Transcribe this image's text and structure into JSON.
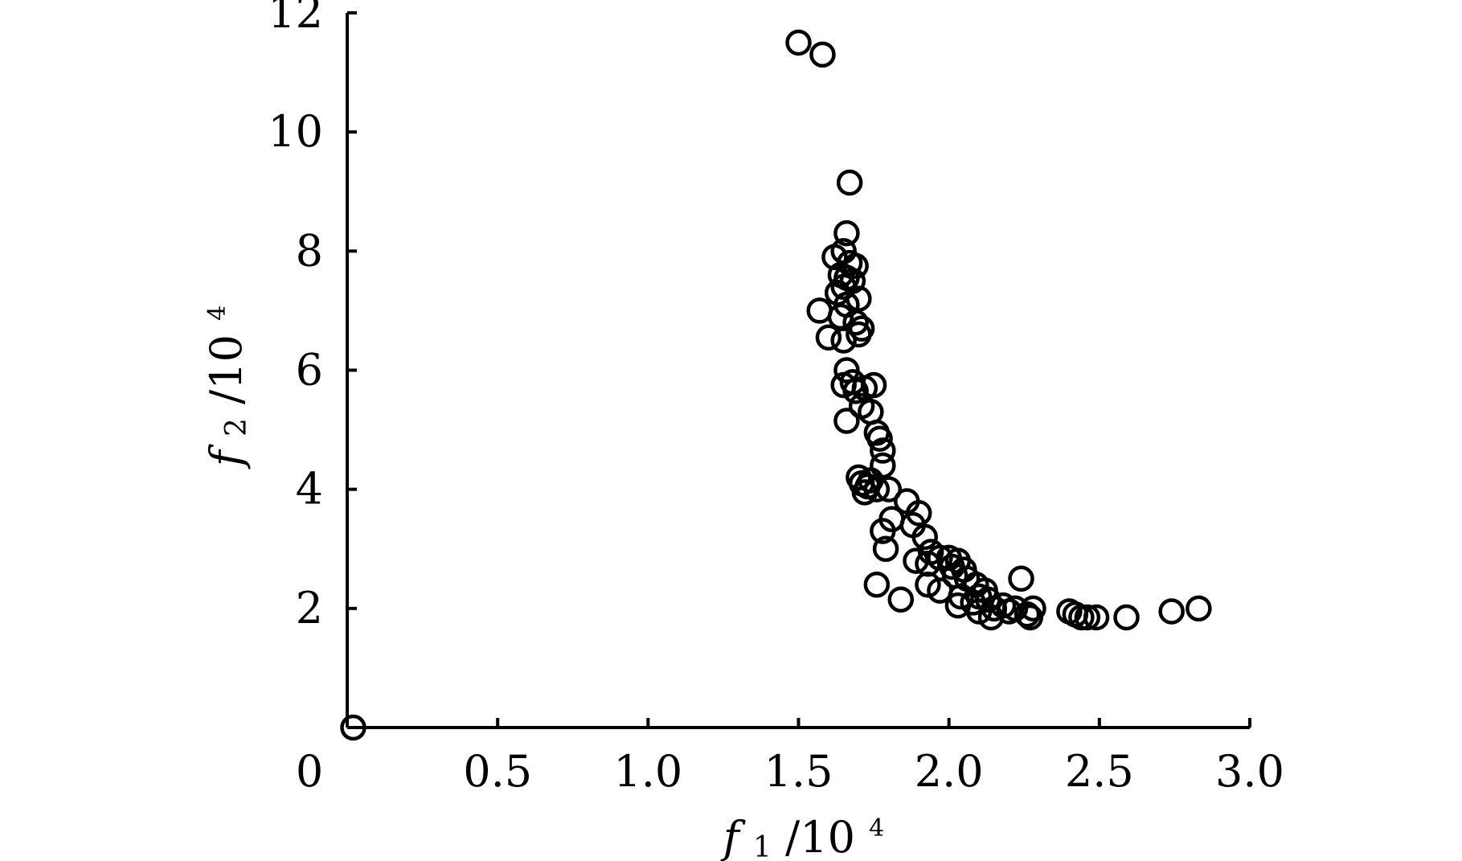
{
  "chart_data": {
    "type": "scatter",
    "title": "",
    "x_axis": {
      "label": {
        "var": "f",
        "sub": "1",
        "rest": "/10",
        "sup": "4"
      },
      "range": [
        0,
        3.0
      ],
      "ticks": [
        0,
        0.5,
        1.0,
        1.5,
        2.0,
        2.5,
        3.0
      ],
      "tick_labels": [
        "0",
        "0.5",
        "1.0",
        "1.5",
        "2.0",
        "2.5",
        "3.0"
      ]
    },
    "y_axis": {
      "label": {
        "var": "f",
        "sub": "2",
        "rest": "/10",
        "sup": "4"
      },
      "range": [
        0,
        12
      ],
      "ticks": [
        2,
        4,
        6,
        8,
        10,
        12
      ],
      "tick_labels": [
        "2",
        "4",
        "6",
        "8",
        "10",
        "12"
      ]
    },
    "grid": false,
    "legend": "none",
    "marker": "open-circle",
    "color": "#000000",
    "points": [
      [
        0.02,
        0.0
      ],
      [
        1.5,
        11.5
      ],
      [
        1.58,
        11.3
      ],
      [
        1.67,
        9.15
      ],
      [
        1.66,
        8.3
      ],
      [
        1.65,
        8.0
      ],
      [
        1.62,
        7.9
      ],
      [
        1.67,
        7.8
      ],
      [
        1.69,
        7.75
      ],
      [
        1.64,
        7.6
      ],
      [
        1.66,
        7.55
      ],
      [
        1.68,
        7.5
      ],
      [
        1.65,
        7.4
      ],
      [
        1.63,
        7.3
      ],
      [
        1.7,
        7.2
      ],
      [
        1.66,
        7.1
      ],
      [
        1.57,
        7.0
      ],
      [
        1.64,
        6.9
      ],
      [
        1.69,
        6.8
      ],
      [
        1.71,
        6.7
      ],
      [
        1.6,
        6.55
      ],
      [
        1.65,
        6.5
      ],
      [
        1.7,
        6.6
      ],
      [
        1.66,
        6.0
      ],
      [
        1.68,
        5.8
      ],
      [
        1.65,
        5.75
      ],
      [
        1.72,
        5.7
      ],
      [
        1.69,
        5.65
      ],
      [
        1.75,
        5.75
      ],
      [
        1.71,
        5.4
      ],
      [
        1.74,
        5.3
      ],
      [
        1.66,
        5.15
      ],
      [
        1.76,
        4.95
      ],
      [
        1.77,
        4.85
      ],
      [
        1.78,
        4.65
      ],
      [
        1.78,
        4.4
      ],
      [
        1.7,
        4.2
      ],
      [
        1.71,
        4.1
      ],
      [
        1.74,
        4.15
      ],
      [
        1.73,
        4.05
      ],
      [
        1.76,
        4.0
      ],
      [
        1.8,
        4.0
      ],
      [
        1.72,
        3.95
      ],
      [
        1.86,
        3.8
      ],
      [
        1.9,
        3.6
      ],
      [
        1.81,
        3.5
      ],
      [
        1.88,
        3.4
      ],
      [
        1.78,
        3.3
      ],
      [
        1.92,
        3.2
      ],
      [
        1.79,
        3.0
      ],
      [
        1.94,
        2.95
      ],
      [
        1.97,
        2.85
      ],
      [
        1.89,
        2.8
      ],
      [
        2.0,
        2.85
      ],
      [
        2.03,
        2.8
      ],
      [
        1.93,
        2.75
      ],
      [
        2.01,
        2.7
      ],
      [
        2.05,
        2.65
      ],
      [
        2.02,
        2.55
      ],
      [
        2.06,
        2.5
      ],
      [
        1.76,
        2.4
      ],
      [
        1.93,
        2.4
      ],
      [
        2.09,
        2.4
      ],
      [
        1.97,
        2.3
      ],
      [
        2.12,
        2.3
      ],
      [
        2.04,
        2.2
      ],
      [
        2.1,
        2.2
      ],
      [
        1.84,
        2.15
      ],
      [
        2.13,
        2.15
      ],
      [
        2.08,
        2.1
      ],
      [
        2.18,
        2.05
      ],
      [
        2.03,
        2.05
      ],
      [
        2.15,
        2.0
      ],
      [
        2.22,
        2.0
      ],
      [
        2.28,
        2.0
      ],
      [
        2.1,
        1.95
      ],
      [
        2.2,
        1.95
      ],
      [
        2.26,
        1.9
      ],
      [
        2.14,
        1.85
      ],
      [
        2.24,
        2.5
      ],
      [
        2.27,
        1.85
      ],
      [
        2.4,
        1.95
      ],
      [
        2.42,
        1.9
      ],
      [
        2.44,
        1.85
      ],
      [
        2.46,
        1.85
      ],
      [
        2.49,
        1.85
      ],
      [
        2.59,
        1.85
      ],
      [
        2.74,
        1.95
      ],
      [
        2.83,
        2.0
      ]
    ]
  }
}
